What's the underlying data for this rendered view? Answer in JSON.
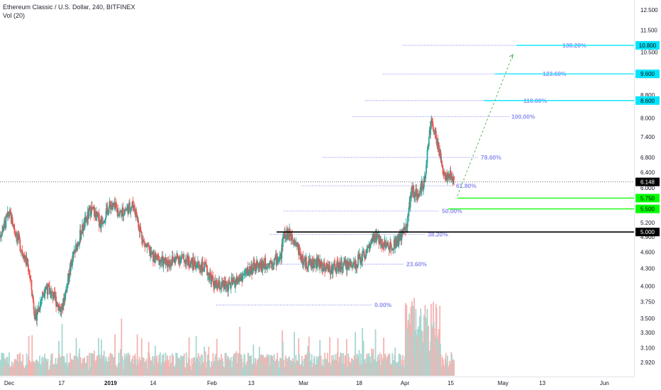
{
  "legend": {
    "symbol_line": "Ethereum Classic / U.S. Dollar, 240, BITFINEX",
    "volume_line": "Vol (20)"
  },
  "colors": {
    "up": "#26a69a",
    "down": "#ef5350",
    "vol_up": "#a7d7d1",
    "vol_down": "#f5b3b1",
    "fib": "#6a6ff0",
    "fib_label": "#8e8ef2",
    "level_cyan": "#00e5ff",
    "level_green": "#00ff00",
    "level_black": "#000000"
  },
  "chart_data": {
    "type": "candlestick",
    "title": "Ethereum Classic / U.S. Dollar, 240, BITFINEX",
    "indicator": "Vol (20)",
    "y_axis": {
      "scale": "log",
      "ticks": [
        "12.500",
        "11.500",
        "10.500",
        "9.600",
        "8.800",
        "8.000",
        "7.400",
        "6.800",
        "6.400",
        "6.000",
        "5.200",
        "4.900",
        "4.600",
        "4.300",
        "4.000",
        "3.750",
        "3.500",
        "3.300",
        "3.100",
        "2.920"
      ]
    },
    "x_axis": {
      "ticks": [
        {
          "label": "Dec",
          "date": "2018-12-01"
        },
        {
          "label": "17",
          "date": "2018-12-17"
        },
        {
          "label": "2019",
          "date": "2019-01-01"
        },
        {
          "label": "14",
          "date": "2019-01-14"
        },
        {
          "label": "Feb",
          "date": "2019-02-01"
        },
        {
          "label": "13",
          "date": "2019-02-13"
        },
        {
          "label": "Mar",
          "date": "2019-03-01"
        },
        {
          "label": "18",
          "date": "2019-03-18"
        },
        {
          "label": "Apr",
          "date": "2019-04-01"
        },
        {
          "label": "15",
          "date": "2019-04-15"
        },
        {
          "label": "May",
          "date": "2019-05-01"
        },
        {
          "label": "13",
          "date": "2019-05-13"
        },
        {
          "label": "Jun",
          "date": "2019-06-01"
        }
      ]
    },
    "price_path": [
      [
        "2018-11-28",
        4.9
      ],
      [
        "2018-12-01",
        5.4
      ],
      [
        "2018-12-04",
        4.8
      ],
      [
        "2018-12-07",
        4.3
      ],
      [
        "2018-12-09",
        3.5
      ],
      [
        "2018-12-12",
        4.0
      ],
      [
        "2018-12-15",
        3.8
      ],
      [
        "2018-12-17",
        3.6
      ],
      [
        "2018-12-20",
        4.4
      ],
      [
        "2018-12-23",
        5.0
      ],
      [
        "2018-12-26",
        5.5
      ],
      [
        "2018-12-29",
        5.2
      ],
      [
        "2019-01-01",
        5.6
      ],
      [
        "2019-01-04",
        5.4
      ],
      [
        "2019-01-08",
        5.6
      ],
      [
        "2019-01-11",
        4.8
      ],
      [
        "2019-01-14",
        4.5
      ],
      [
        "2019-01-18",
        4.4
      ],
      [
        "2019-01-22",
        4.5
      ],
      [
        "2019-01-26",
        4.4
      ],
      [
        "2019-01-30",
        4.3
      ],
      [
        "2019-02-02",
        4.0
      ],
      [
        "2019-02-06",
        4.0
      ],
      [
        "2019-02-09",
        4.1
      ],
      [
        "2019-02-13",
        4.3
      ],
      [
        "2019-02-18",
        4.4
      ],
      [
        "2019-02-22",
        4.5
      ],
      [
        "2019-02-23",
        5.0
      ],
      [
        "2019-02-26",
        4.9
      ],
      [
        "2019-03-01",
        4.4
      ],
      [
        "2019-03-05",
        4.4
      ],
      [
        "2019-03-09",
        4.3
      ],
      [
        "2019-03-13",
        4.35
      ],
      [
        "2019-03-17",
        4.4
      ],
      [
        "2019-03-20",
        4.6
      ],
      [
        "2019-03-23",
        4.9
      ],
      [
        "2019-03-27",
        4.7
      ],
      [
        "2019-03-31",
        4.9
      ],
      [
        "2019-04-02",
        5.3
      ],
      [
        "2019-04-03",
        6.0
      ],
      [
        "2019-04-05",
        5.8
      ],
      [
        "2019-04-07",
        6.2
      ],
      [
        "2019-04-09",
        8.0
      ],
      [
        "2019-04-11",
        7.2
      ],
      [
        "2019-04-13",
        6.3
      ],
      [
        "2019-04-15",
        6.3
      ],
      [
        "2019-04-16",
        6.15
      ]
    ],
    "last_price": {
      "value": 6.148,
      "label": "6.148"
    },
    "fibonacci": [
      {
        "ratio": "0.00%",
        "price": 3.7
      },
      {
        "ratio": "23.60%",
        "price": 4.38
      },
      {
        "ratio": "38.20%",
        "price": 4.95
      },
      {
        "ratio": "50.00%",
        "price": 5.45
      },
      {
        "ratio": "61.80%",
        "price": 6.05
      },
      {
        "ratio": "78.60%",
        "price": 6.8
      },
      {
        "ratio": "100.00%",
        "price": 8.05
      },
      {
        "ratio": "110.00%",
        "price": 8.6
      },
      {
        "ratio": "123.60%",
        "price": 9.6
      },
      {
        "ratio": "138.20%",
        "price": 10.8
      }
    ],
    "levels": [
      {
        "label": "10.800",
        "price": 10.8,
        "color": "cyan"
      },
      {
        "label": "9.600",
        "price": 9.6,
        "color": "cyan"
      },
      {
        "label": "8.600",
        "price": 8.6,
        "color": "cyan"
      },
      {
        "label": "5.750",
        "price": 5.75,
        "color": "green"
      },
      {
        "label": "5.500",
        "price": 5.5,
        "color": "green"
      },
      {
        "label": "5.000",
        "price": 5.0,
        "color": "black"
      }
    ],
    "projection": {
      "from": [
        "2019-04-17",
        5.8
      ],
      "to": [
        "2019-05-04",
        10.4
      ]
    }
  }
}
